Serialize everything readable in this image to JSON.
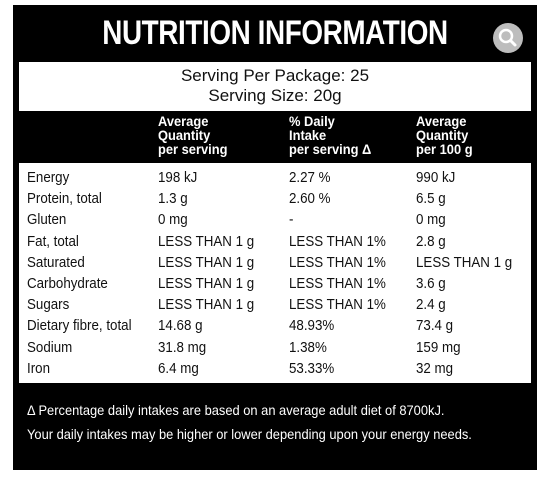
{
  "header": {
    "title": "NUTRITION INFORMATION"
  },
  "serving": [
    "Serving Per Package: 25",
    "Serving Size: 20g"
  ],
  "table": {
    "columns": [
      [
        "Average",
        "Quantity",
        "per serving"
      ],
      [
        "% Daily",
        "Intake",
        "per serving Δ"
      ],
      [
        "Average",
        "Quantity",
        "per 100 g"
      ]
    ],
    "rows": [
      [
        "Energy",
        "198 kJ",
        "2.27 %",
        "990 kJ"
      ],
      [
        "Protein, total",
        "1.3 g",
        "2.60 %",
        "6.5 g"
      ],
      [
        "Gluten",
        "0 mg",
        "-",
        "0 mg"
      ],
      [
        "Fat, total",
        "LESS THAN 1 g",
        "LESS THAN 1%",
        "2.8 g"
      ],
      [
        "Saturated",
        "LESS THAN 1 g",
        "LESS THAN 1%",
        "LESS THAN 1 g"
      ],
      [
        "Carbohydrate",
        "LESS THAN 1 g",
        "LESS THAN 1%",
        "3.6 g"
      ],
      [
        "Sugars",
        "LESS THAN 1 g",
        "LESS THAN 1%",
        "2.4 g"
      ],
      [
        "Dietary fibre, total",
        "14.68 g",
        "48.93%",
        "73.4 g"
      ],
      [
        "Sodium",
        "31.8 mg",
        "1.38%",
        "159 mg"
      ],
      [
        "Iron",
        "6.4 mg",
        "53.33%",
        "32 mg"
      ]
    ]
  },
  "footnote": [
    "Δ Percentage daily intakes are based on an average adult diet of 8700kJ.",
    "Your daily intakes may be higher or lower depending upon your energy needs."
  ]
}
